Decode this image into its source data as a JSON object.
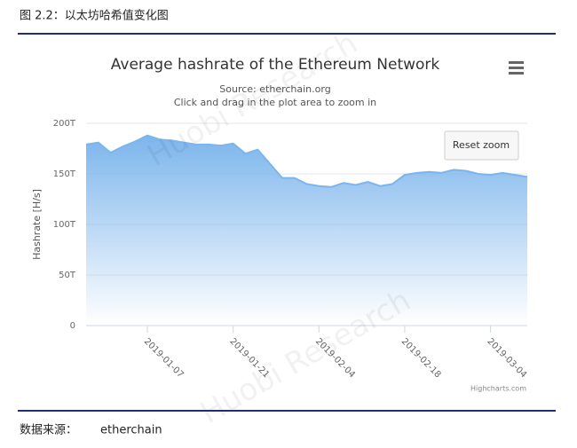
{
  "header": {
    "title": "图 2.2：以太坊哈希值变化图"
  },
  "footer": {
    "label": "数据来源：",
    "source": "etherchain"
  },
  "watermark": "Huobi Research",
  "chart_data": {
    "type": "area",
    "title": "Average hashrate of the Ethereum Network",
    "subtitle": [
      "Source: etherchain.org",
      "Click and drag in the plot area to zoom in"
    ],
    "y_label": "Hashrate [H/s]",
    "button": "Reset zoom",
    "credits": "Highcharts.com",
    "x": [
      "2018-12-28",
      "2018-12-30",
      "2019-01-01",
      "2019-01-03",
      "2019-01-05",
      "2019-01-07",
      "2019-01-09",
      "2019-01-11",
      "2019-01-13",
      "2019-01-15",
      "2019-01-17",
      "2019-01-19",
      "2019-01-21",
      "2019-01-23",
      "2019-01-25",
      "2019-01-27",
      "2019-01-29",
      "2019-01-31",
      "2019-02-02",
      "2019-02-04",
      "2019-02-06",
      "2019-02-08",
      "2019-02-10",
      "2019-02-12",
      "2019-02-14",
      "2019-02-16",
      "2019-02-18",
      "2019-02-20",
      "2019-02-22",
      "2019-02-24",
      "2019-02-26",
      "2019-02-28",
      "2019-03-02",
      "2019-03-04",
      "2019-03-06",
      "2019-03-08",
      "2019-03-10"
    ],
    "values": [
      179,
      181,
      171,
      177,
      182,
      188,
      184,
      183,
      181,
      179,
      179,
      178,
      180,
      170,
      174,
      160,
      146,
      146,
      140,
      138,
      137,
      141,
      139,
      142,
      138,
      140,
      149,
      151,
      152,
      151,
      154,
      153,
      150,
      149,
      151,
      149,
      147
    ],
    "color": "#7cb5ec",
    "xlim": [
      "2018-12-28",
      "2019-03-10"
    ],
    "xticks": [
      "2019-01-07",
      "2019-01-21",
      "2019-02-04",
      "2019-02-18",
      "2019-03-04"
    ],
    "ylim": [
      0,
      200
    ],
    "yticks": [
      0,
      {
        "value": 50,
        "label": "50T"
      },
      {
        "value": 100,
        "label": "100T"
      },
      {
        "value": 150,
        "label": "150T"
      },
      {
        "value": 200,
        "label": "200T"
      }
    ],
    "grid": true
  }
}
